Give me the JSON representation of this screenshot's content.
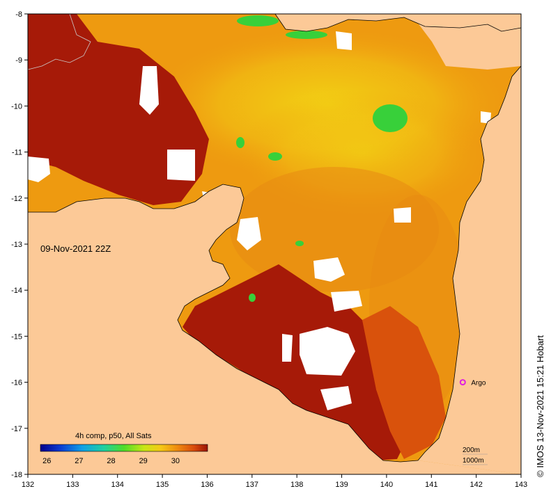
{
  "map": {
    "date_label": "09-Nov-2021 22Z",
    "x_ticks": [
      "132",
      "133",
      "134",
      "135",
      "136",
      "137",
      "138",
      "139",
      "140",
      "141",
      "142",
      "143"
    ],
    "y_ticks": [
      "-8",
      "-9",
      "-10",
      "-11",
      "-12",
      "-13",
      "-14",
      "-15",
      "-16",
      "-17",
      "-18"
    ],
    "marker": {
      "label": "Argo",
      "lon": 141.7,
      "lat": -16.0,
      "color": "#e020e0"
    },
    "colors": {
      "land": "#fcc997",
      "hot": "#a61a08",
      "warm": "#d9520c",
      "mid": "#ee9a10",
      "cool": "#f5c815",
      "cloud": "#ffffff",
      "green": "#38d03a"
    }
  },
  "legend": {
    "title": "4h comp, p50, All Sats",
    "ticks": [
      "26",
      "27",
      "28",
      "29",
      "30"
    ],
    "range": [
      25.8,
      31.0
    ]
  },
  "contours": {
    "line1": "200m",
    "line2": "1000m"
  },
  "credit": "© IMOS 13-Nov-2021 15:21 Hobart"
}
